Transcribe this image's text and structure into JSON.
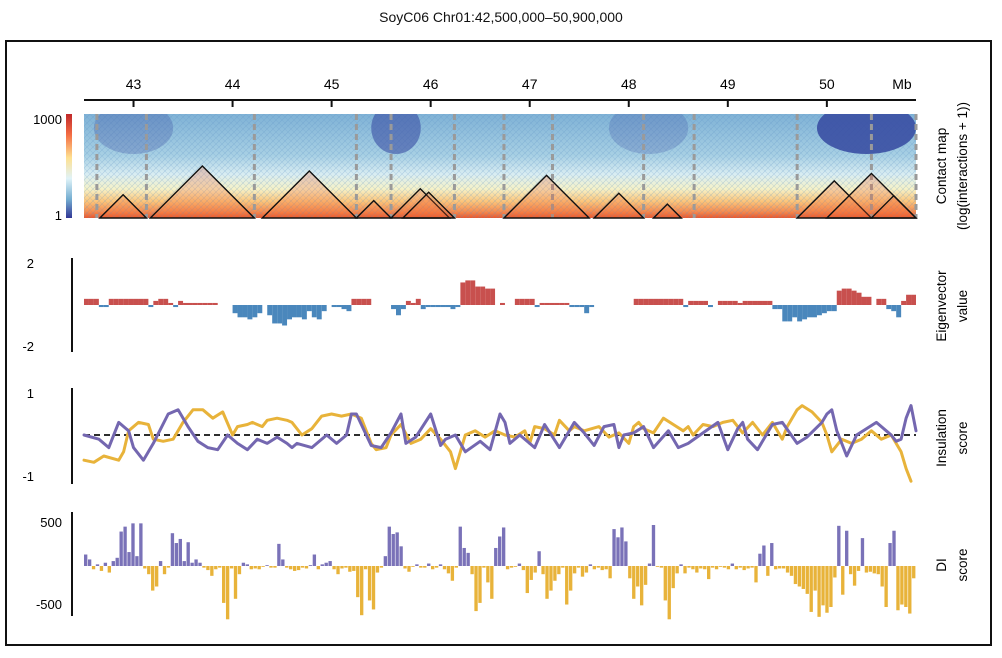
{
  "title": "SoyC06 Chr01:42,500,000–50,900,000",
  "chart_data": {
    "type": "multi-track genome browser",
    "x_axis": {
      "range_mb": [
        42.5,
        50.9
      ],
      "ticks": [
        43,
        44,
        45,
        46,
        47,
        48,
        49,
        50
      ],
      "tick_labels": [
        "43",
        "44",
        "45",
        "46",
        "47",
        "48",
        "49",
        "50"
      ],
      "unit_label": "Mb"
    },
    "tracks": [
      {
        "id": "contact_map",
        "type": "heatmap",
        "label_lines": [
          "Contact map",
          "(log(interactions + 1))"
        ],
        "colorbar": {
          "max_label": "1000",
          "min_label": "1",
          "colors": [
            "#313695",
            "#74add1",
            "#e0f3f8",
            "#fee090",
            "#f46d43",
            "#c0282a"
          ]
        },
        "tad_boundaries_mb": [
          42.63,
          43.13,
          44.22,
          45.25,
          45.6,
          46.24,
          46.74,
          47.23,
          48.15,
          48.66,
          49.7,
          50.45,
          50.9
        ],
        "tad_domains_mb": [
          [
            42.66,
            43.13
          ],
          [
            43.17,
            44.22
          ],
          [
            44.3,
            45.25
          ],
          [
            45.25,
            45.6
          ],
          [
            45.6,
            46.19
          ],
          [
            45.72,
            46.24
          ],
          [
            46.74,
            47.6
          ],
          [
            47.65,
            48.15
          ],
          [
            48.25,
            48.53
          ],
          [
            49.7,
            50.45
          ],
          [
            50.0,
            50.9
          ],
          [
            50.45,
            50.9
          ]
        ]
      },
      {
        "id": "eigenvector",
        "type": "bar",
        "label_lines": [
          "Eigenvector",
          "value"
        ],
        "ylim": [
          -2,
          2
        ],
        "tick_labels": [
          "2",
          "-2"
        ],
        "bin_size_mb": 0.1,
        "x_start_mb": 42.5,
        "colors": {
          "positive": "#c8504e",
          "negative": "#4a87bc"
        },
        "values": [
          0.3,
          0.3,
          0.3,
          -0.1,
          -0.1,
          0.3,
          0.3,
          0.3,
          0.3,
          0.3,
          0.3,
          0.3,
          0.3,
          -0.1,
          0.2,
          0.3,
          0.3,
          0.1,
          -0.1,
          0.2,
          0.1,
          0.1,
          0.1,
          0.1,
          0.1,
          0.1,
          0.1,
          0.0,
          0.0,
          0.0,
          -0.4,
          -0.6,
          -0.6,
          -0.7,
          -0.6,
          -0.4,
          0.0,
          -0.5,
          -0.9,
          -0.9,
          -1.0,
          -0.7,
          -0.6,
          -0.6,
          -0.7,
          -0.3,
          -0.6,
          -0.7,
          -0.3,
          0.0,
          -0.1,
          -0.1,
          -0.2,
          -0.3,
          0.3,
          0.3,
          0.3,
          0.3,
          0.0,
          0.0,
          0.0,
          0.0,
          -0.2,
          -0.5,
          -0.2,
          0.2,
          0.1,
          0.3,
          -0.2,
          -0.1,
          -0.1,
          -0.1,
          -0.1,
          -0.1,
          -0.2,
          -0.1,
          1.1,
          1.2,
          1.2,
          0.9,
          0.9,
          0.8,
          0.8,
          0.0,
          0.1,
          0.0,
          0.0,
          0.3,
          0.3,
          0.3,
          0.3,
          -0.1,
          0.1,
          0.1,
          0.1,
          0.1,
          0.1,
          0.1,
          -0.1,
          -0.1,
          -0.1,
          -0.4,
          -0.1,
          0.0,
          0.0,
          0.0,
          0.0,
          0.0,
          0.0,
          0.0,
          0.0,
          0.3,
          0.3,
          0.3,
          0.3,
          0.3,
          0.3,
          0.3,
          0.3,
          0.3,
          0.3,
          -0.1,
          0.2,
          0.2,
          0.2,
          0.2,
          -0.1,
          0.0,
          0.2,
          0.2,
          0.2,
          0.2,
          0.1,
          0.2,
          0.2,
          0.2,
          0.2,
          0.2,
          0.2,
          -0.2,
          -0.2,
          -0.8,
          -0.8,
          -0.6,
          -0.8,
          -0.7,
          -0.6,
          -0.6,
          -0.5,
          -0.4,
          -0.3,
          -0.3,
          0.7,
          0.8,
          0.8,
          0.7,
          0.6,
          0.4,
          0.4,
          0.0,
          0.3,
          0.3,
          -0.2,
          -0.3,
          -0.6,
          0.2,
          0.5,
          0.5
        ]
      },
      {
        "id": "insulation_score",
        "type": "line",
        "label_lines": [
          "Insulation",
          "score"
        ],
        "ylim": [
          -1,
          1
        ],
        "tick_labels": [
          "1",
          "-1"
        ],
        "reference_line": 0,
        "series": [
          {
            "color": "#e8b33a",
            "x_mb": [
              42.5,
              42.6,
              42.7,
              42.85,
              42.9,
              42.95,
              43.05,
              43.15,
              43.2,
              43.3,
              43.4,
              43.5,
              43.6,
              43.7,
              43.8,
              43.9,
              44.0,
              44.05,
              44.15,
              44.2,
              44.3,
              44.35,
              44.45,
              44.55,
              44.6,
              44.7,
              44.8,
              44.9,
              45.0,
              45.1,
              45.2,
              45.3,
              45.4,
              45.45,
              45.55,
              45.6,
              45.7,
              45.8,
              45.9,
              46.0,
              46.1,
              46.2,
              46.25,
              46.35,
              46.45,
              46.55,
              46.65,
              46.75,
              46.85,
              46.95,
              47.0,
              47.05,
              47.15,
              47.25,
              47.3,
              47.4,
              47.45,
              47.55,
              47.7,
              47.8,
              47.9,
              48.0,
              48.05,
              48.1,
              48.15,
              48.25,
              48.35,
              48.45,
              48.55,
              48.6,
              48.65,
              48.75,
              48.85,
              48.95,
              49.05,
              49.15,
              49.25,
              49.35,
              49.45,
              49.55,
              49.6,
              49.7,
              49.75,
              49.85,
              49.95,
              50.0,
              50.05,
              50.15,
              50.25,
              50.35,
              50.45,
              50.55,
              50.65,
              50.75,
              50.8,
              50.85
            ],
            "y": [
              -0.6,
              -0.65,
              -0.5,
              -0.6,
              -0.4,
              0.1,
              0.3,
              0.25,
              -0.1,
              -0.15,
              -0.1,
              0.3,
              0.6,
              0.6,
              0.4,
              0.55,
              0.0,
              0.2,
              0.25,
              0.3,
              0.2,
              0.35,
              0.4,
              0.35,
              0.3,
              0.0,
              0.15,
              0.45,
              0.5,
              0.45,
              0.5,
              0.4,
              -0.2,
              -0.35,
              -0.3,
              0.0,
              0.25,
              -0.2,
              -0.1,
              0.15,
              -0.1,
              -0.4,
              -0.8,
              0.0,
              0.1,
              -0.05,
              0.1,
              0.0,
              -0.05,
              0.1,
              -0.2,
              0.2,
              0.15,
              0.0,
              0.35,
              0.1,
              0.2,
              0.1,
              0.2,
              -0.05,
              0.05,
              -0.2,
              0.2,
              0.3,
              0.15,
              0.05,
              0.4,
              0.25,
              0.1,
              0.2,
              0.0,
              0.25,
              0.2,
              0.3,
              0.35,
              0.05,
              0.3,
              0.0,
              0.3,
              -0.1,
              0.2,
              0.6,
              0.7,
              0.55,
              0.3,
              0.0,
              -0.4,
              -0.1,
              -0.2,
              -0.1,
              0.1,
              -0.1,
              0.0,
              -0.4,
              -0.8,
              -1.1
            ]
          },
          {
            "color": "#7467b0",
            "x_mb": [
              42.5,
              42.65,
              42.75,
              42.85,
              42.95,
              43.0,
              43.1,
              43.2,
              43.35,
              43.45,
              43.55,
              43.65,
              43.75,
              43.85,
              43.95,
              44.05,
              44.15,
              44.25,
              44.35,
              44.45,
              44.55,
              44.6,
              44.65,
              44.8,
              44.95,
              45.05,
              45.15,
              45.2,
              45.25,
              45.4,
              45.5,
              45.6,
              45.7,
              45.75,
              45.85,
              46.0,
              46.1,
              46.15,
              46.25,
              46.35,
              46.5,
              46.6,
              46.7,
              46.75,
              46.8,
              46.9,
              47.05,
              47.15,
              47.3,
              47.45,
              47.55,
              47.65,
              47.75,
              47.85,
              47.9,
              47.95,
              48.05,
              48.15,
              48.25,
              48.4,
              48.5,
              48.6,
              48.75,
              48.9,
              49.0,
              49.1,
              49.15,
              49.2,
              49.3,
              49.45,
              49.55,
              49.7,
              49.8,
              49.95,
              50.0,
              50.05,
              50.1,
              50.2,
              50.3,
              50.5,
              50.65,
              50.7,
              50.75,
              50.8,
              50.85,
              50.9
            ],
            "y": [
              0.0,
              -0.1,
              -0.3,
              0.3,
              0.1,
              -0.3,
              -0.6,
              -0.2,
              0.5,
              0.6,
              0.2,
              -0.15,
              -0.3,
              -0.35,
              0.0,
              -0.2,
              -0.35,
              -0.1,
              -0.2,
              -0.05,
              -0.2,
              -0.3,
              -0.2,
              -0.3,
              0.0,
              -0.2,
              0.0,
              0.5,
              0.5,
              -0.25,
              -0.3,
              0.05,
              0.5,
              -0.2,
              -0.05,
              0.5,
              -0.25,
              -0.1,
              0.0,
              -0.4,
              -0.15,
              -0.35,
              0.5,
              0.3,
              -0.2,
              0.0,
              -0.3,
              0.25,
              -0.3,
              0.3,
              0.05,
              -0.25,
              0.2,
              0.25,
              -0.3,
              0.0,
              0.05,
              0.2,
              -0.3,
              0.1,
              -0.3,
              -0.2,
              0.05,
              0.3,
              -0.35,
              0.15,
              0.3,
              -0.1,
              -0.35,
              0.25,
              0.3,
              -0.2,
              -0.05,
              0.3,
              0.5,
              0.6,
              0.1,
              -0.5,
              0.0,
              0.3,
              0.0,
              -0.15,
              -0.1,
              0.4,
              0.7,
              0.1
            ]
          }
        ]
      },
      {
        "id": "di_score",
        "type": "bar",
        "label_lines": [
          "DI",
          "score"
        ],
        "ylim": [
          -500,
          500
        ],
        "tick_labels": [
          "500",
          "-500"
        ],
        "bin_size_mb": 0.04,
        "x_start_mb": 42.5,
        "colors": {
          "positive": "#7a72b8",
          "negative": "#e8b33a"
        },
        "values": [
          140,
          80,
          -40,
          20,
          -60,
          40,
          -80,
          60,
          100,
          420,
          480,
          170,
          520,
          120,
          520,
          -30,
          -100,
          -300,
          -250,
          60,
          -100,
          -20,
          400,
          280,
          330,
          60,
          290,
          40,
          80,
          40,
          -20,
          -50,
          -120,
          -40,
          -20,
          -450,
          -650,
          -30,
          -400,
          -100,
          40,
          20,
          -40,
          -30,
          -40,
          -10,
          10,
          -20,
          -20,
          270,
          80,
          -20,
          -40,
          -60,
          -50,
          -20,
          -30,
          10,
          140,
          -40,
          20,
          40,
          60,
          -40,
          -100,
          -30,
          -20,
          -70,
          -60,
          -380,
          -600,
          -40,
          -420,
          -530,
          -80,
          -20,
          120,
          480,
          390,
          410,
          240,
          -30,
          -70,
          -10,
          20,
          -20,
          -20,
          30,
          -40,
          -20,
          20,
          -40,
          -90,
          -180,
          -20,
          480,
          220,
          160,
          -100,
          -550,
          -450,
          -20,
          -200,
          -400,
          220,
          360,
          470,
          -40,
          -20,
          -10,
          30,
          -50,
          -330,
          -170,
          -80,
          180,
          -100,
          -400,
          -300,
          -180,
          -100,
          -20,
          -470,
          -300,
          -90,
          -20,
          -130,
          -80,
          20,
          -40,
          -20,
          -50,
          -40,
          -150,
          450,
          350,
          470,
          300,
          -150,
          -400,
          -250,
          -480,
          -230,
          30,
          500,
          -10,
          -20,
          -420,
          -650,
          -270,
          -90,
          20,
          -90,
          -20,
          -40,
          -80,
          -30,
          -40,
          -160,
          -20,
          -40,
          -10,
          -20,
          -40,
          30,
          -40,
          -20,
          -50,
          -30,
          -20,
          -200,
          150,
          250,
          -120,
          280,
          -40,
          -30,
          -30,
          -80,
          -120,
          -220,
          -250,
          -280,
          -340,
          -560,
          -300,
          -620,
          -480,
          -570,
          -500,
          -140,
          490,
          -350,
          430,
          -100,
          -240,
          -60,
          340,
          -80,
          -70,
          -90,
          -100,
          -250,
          -500,
          280,
          430,
          -540,
          -470,
          -500,
          -580,
          -150
        ]
      }
    ]
  }
}
